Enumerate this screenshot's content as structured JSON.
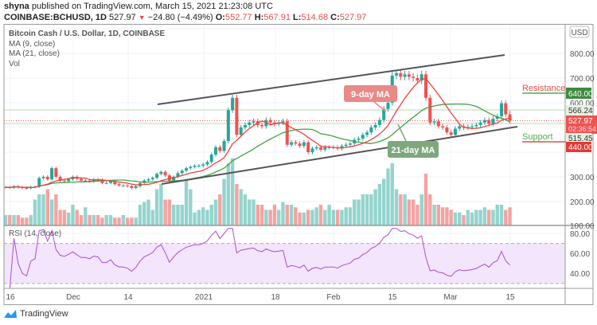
{
  "header": {
    "author": "shyna",
    "published_text": "published on TradingView.com, March 15, 2021 21:23:08 UTC",
    "symbol": "COINBASE:BCHUSD, 1D",
    "last": "527.97",
    "change": "−24.80 (−4.49%)",
    "o_label": "O:",
    "o": "552.77",
    "h_label": "H:",
    "h": "567.91",
    "l_label": "L:",
    "l": "514.68",
    "c_label": "C:",
    "c": "527.97"
  },
  "legend": {
    "title": "Bitcoin Cash / U.S. Dollar, 1D, COINBASE",
    "ma9": "MA (9, close)",
    "ma21": "MA (21, close)",
    "vol": "Vol",
    "rsi": "RSI (14, close)"
  },
  "annotations": {
    "ma9_label": "9-day MA",
    "ma21_label": "21-day MA",
    "resistance": "Resistance",
    "support": "Support"
  },
  "price_axis": {
    "currency": "USD",
    "ticks": [
      "800.00",
      "700.00",
      "600.00",
      "300.00",
      "200.00",
      "100.00"
    ],
    "resistance_value": "640.00",
    "upper_line": "566.24",
    "last_price": "527.97",
    "countdown": "02:36:54",
    "lower_line": "515.45",
    "support_value": "440.00"
  },
  "rsi_axis": {
    "ticks": [
      "80.00",
      "60.00",
      "40.00"
    ]
  },
  "time_axis": {
    "ticks": [
      "16",
      "Dec",
      "14",
      "2021",
      "18",
      "Feb",
      "15",
      "Mar",
      "15"
    ]
  },
  "colors": {
    "up": "#26a69a",
    "down": "#ef5350",
    "ma9": "#f0413a",
    "ma21": "#43a047",
    "rsi": "#9c27b0",
    "rsi_band": "#f3e5fc",
    "resistance": "#e0504b",
    "support": "#4caf50"
  },
  "branding": "TradingView",
  "chart_data": {
    "type": "candlestick",
    "title": "Bitcoin Cash / U.S. Dollar, 1D, COINBASE",
    "interval": "1D",
    "x_range": [
      "2020-11-15",
      "2021-03-15"
    ],
    "ylim": [
      100,
      900
    ],
    "last_candle": {
      "open": 552.77,
      "high": 567.91,
      "low": 514.68,
      "close": 527.97
    },
    "close": [
      258,
      256,
      262,
      258,
      255,
      254,
      259,
      260,
      295,
      300,
      290,
      335,
      300,
      285,
      282,
      290,
      300,
      292,
      285,
      285,
      282,
      290,
      288,
      275,
      275,
      282,
      270,
      265,
      265,
      262,
      255,
      262,
      275,
      285,
      290,
      296,
      312,
      320,
      306,
      285,
      300,
      315,
      325,
      335,
      340,
      345,
      345,
      350,
      360,
      390,
      420,
      405,
      445,
      570,
      620,
      470,
      500,
      510,
      520,
      525,
      510,
      505,
      530,
      520,
      515,
      520,
      525,
      430,
      440,
      435,
      425,
      440,
      400,
      415,
      420,
      410,
      420,
      420,
      420,
      415,
      425,
      430,
      435,
      450,
      455,
      470,
      480,
      500,
      510,
      530,
      575,
      600,
      710,
      720,
      705,
      715,
      705,
      700,
      690,
      715,
      620,
      520,
      525,
      505,
      500,
      480,
      470,
      495,
      505,
      500,
      502,
      505,
      510,
      520,
      530,
      515,
      535,
      545,
      598,
      552.77,
      527.97
    ],
    "volume_relative": [
      2,
      2,
      2,
      2,
      1.5,
      1.5,
      2,
      5,
      6,
      6,
      7,
      5,
      6,
      3,
      3,
      2.5,
      4,
      3,
      2,
      3.5,
      2,
      2,
      2,
      1.5,
      2,
      2,
      1.5,
      1.5,
      2,
      1.5,
      1.5,
      1.5,
      4,
      4.5,
      5,
      3,
      7,
      8,
      5,
      5,
      4,
      4,
      4,
      9,
      7,
      2.5,
      3,
      3.5,
      3,
      4,
      5,
      6,
      9,
      12,
      13,
      8,
      7,
      6,
      5,
      5,
      4,
      4,
      3,
      3,
      4,
      3,
      4.5,
      4,
      4,
      3.5,
      2.5,
      2.5,
      3,
      3,
      3.5,
      4,
      3,
      4,
      3,
      3,
      3,
      3.5,
      3.5,
      5,
      5,
      6,
      6,
      6,
      7,
      8,
      9,
      11,
      12,
      7,
      6,
      6,
      5,
      5,
      4,
      6,
      10,
      6,
      4,
      4,
      3.5,
      3.5,
      3,
      2.5,
      2.5,
      2,
      3,
      2.5,
      3,
      3,
      3.5,
      3,
      3,
      4,
      4,
      3,
      3.5
    ],
    "indicators": [
      "MA 9",
      "MA 21",
      "Volume",
      "RSI 14"
    ],
    "rsi_levels": [
      30,
      70
    ],
    "rsi_ylim": [
      20,
      90
    ],
    "horizontal_levels": {
      "resistance": 640,
      "support": 440,
      "upper": 566.24,
      "lower": 515.45
    }
  }
}
